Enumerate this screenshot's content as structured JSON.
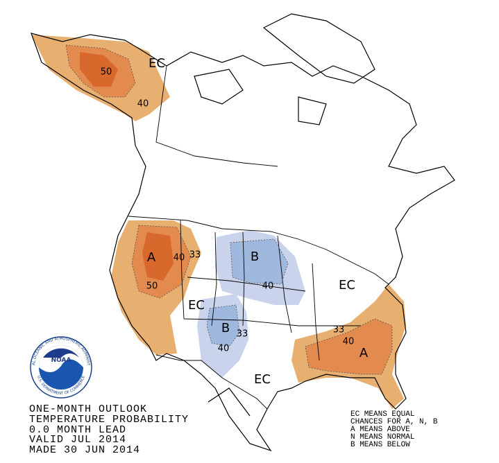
{
  "map_labels": [
    "EC",
    "50",
    "40",
    "A",
    "40",
    "33",
    "50",
    "EC",
    "B",
    "40",
    "EC",
    "B",
    "33",
    "40",
    "EC",
    "33",
    "40",
    "A"
  ],
  "title_lines": [
    "ONE-MONTH OUTLOOK",
    "TEMPERATURE PROBABILITY",
    "0.0 MONTH LEAD",
    "VALID JUL 2014",
    "MADE 30 JUN 2014"
  ],
  "legend_lines": [
    "EC MEANS EQUAL",
    "CHANCES FOR A, N, B",
    "A MEANS ABOVE",
    "N MEANS NORMAL",
    "B MEANS BELOW"
  ],
  "logo": {
    "name": "NOAA",
    "ring_top": "NATIONAL OCEANIC AND ATMOSPHERIC ADMINISTRATION",
    "ring_bottom": "U.S. DEPARTMENT OF COMMERCE"
  }
}
